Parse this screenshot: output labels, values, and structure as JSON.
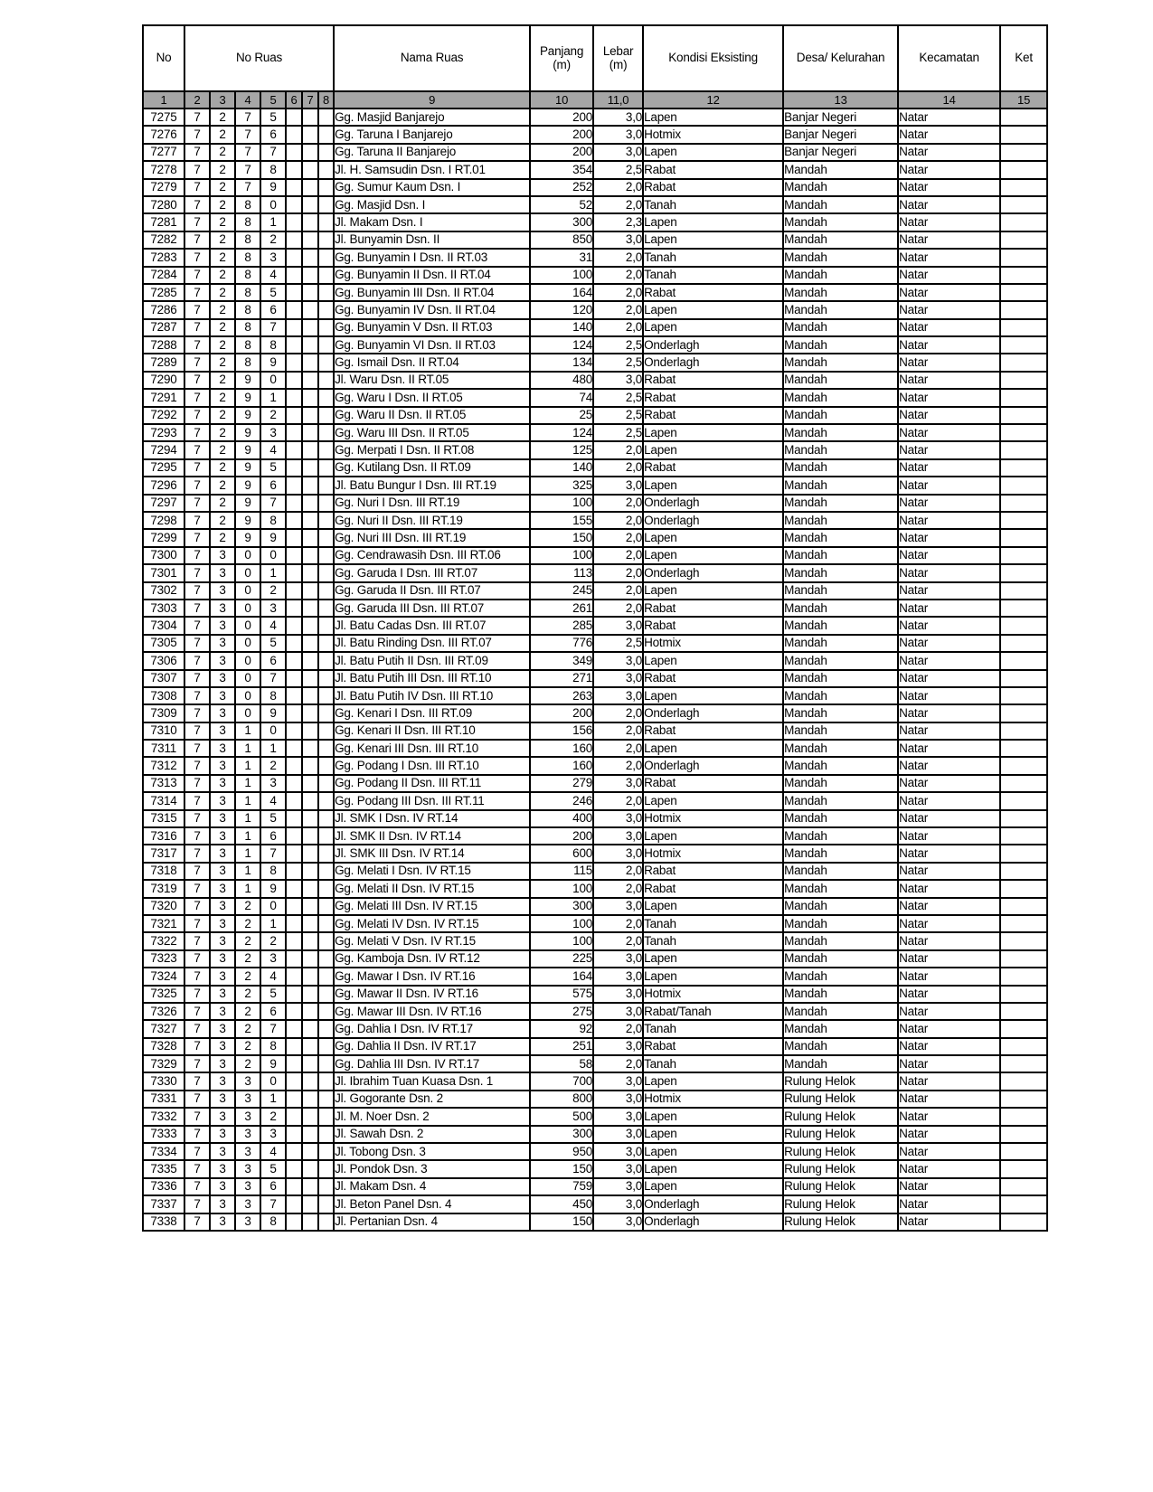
{
  "colors": {
    "header_band": "#a6a6a6",
    "border": "#000000",
    "page_background": "#ffffff"
  },
  "table": {
    "header": {
      "no": "No",
      "no_ruas": "No Ruas",
      "nama_ruas": "Nama Ruas",
      "panjang": "Panjang (m)",
      "lebar": "Lebar (m)",
      "kondisi": "Kondisi Eksisting",
      "desa": "Desa/ Kelurahan",
      "kecamatan": "Kecamatan",
      "ket": "Ket",
      "col_numbers": [
        "1",
        "2",
        "3",
        "4",
        "5",
        "6",
        "7",
        "8",
        "9",
        "10",
        "11,0",
        "12",
        "13",
        "14",
        "15"
      ]
    },
    "rows": [
      [
        "7275",
        "7",
        "2",
        "7",
        "5",
        "Gg. Masjid  Banjarejo",
        "200",
        "3,0",
        "Lapen",
        "Banjar Negeri",
        "Natar"
      ],
      [
        "7276",
        "7",
        "2",
        "7",
        "6",
        "Gg. Taruna I  Banjarejo",
        "200",
        "3,0",
        "Hotmix",
        "Banjar Negeri",
        "Natar"
      ],
      [
        "7277",
        "7",
        "2",
        "7",
        "7",
        "Gg. Taruna II  Banjarejo",
        "200",
        "3,0",
        "Lapen",
        "Banjar Negeri",
        "Natar"
      ],
      [
        "7278",
        "7",
        "2",
        "7",
        "8",
        "Jl. H. Samsudin  Dsn. I RT.01",
        "354",
        "2,5",
        "Rabat",
        "Mandah",
        "Natar"
      ],
      [
        "7279",
        "7",
        "2",
        "7",
        "9",
        "Gg. Sumur Kaum  Dsn. I",
        "252",
        "2,0",
        "Rabat",
        "Mandah",
        "Natar"
      ],
      [
        "7280",
        "7",
        "2",
        "8",
        "0",
        "Gg. Masjid  Dsn. I",
        "52",
        "2,0",
        "Tanah",
        "Mandah",
        "Natar"
      ],
      [
        "7281",
        "7",
        "2",
        "8",
        "1",
        "Jl. Makam  Dsn. I",
        "300",
        "2,3",
        "Lapen",
        "Mandah",
        "Natar"
      ],
      [
        "7282",
        "7",
        "2",
        "8",
        "2",
        "Jl. Bunyamin  Dsn. II",
        "850",
        "3,0",
        "Lapen",
        "Mandah",
        "Natar"
      ],
      [
        "7283",
        "7",
        "2",
        "8",
        "3",
        "Gg. Bunyamin I  Dsn. II RT.03",
        "31",
        "2,0",
        "Tanah",
        "Mandah",
        "Natar"
      ],
      [
        "7284",
        "7",
        "2",
        "8",
        "4",
        "Gg. Bunyamin II  Dsn. II RT.04",
        "100",
        "2,0",
        "Tanah",
        "Mandah",
        "Natar"
      ],
      [
        "7285",
        "7",
        "2",
        "8",
        "5",
        "Gg. Bunyamin III  Dsn. II RT.04",
        "164",
        "2,0",
        "Rabat",
        "Mandah",
        "Natar"
      ],
      [
        "7286",
        "7",
        "2",
        "8",
        "6",
        "Gg. Bunyamin IV  Dsn. II RT.04",
        "120",
        "2,0",
        "Lapen",
        "Mandah",
        "Natar"
      ],
      [
        "7287",
        "7",
        "2",
        "8",
        "7",
        "Gg. Bunyamin V  Dsn. II RT.03",
        "140",
        "2,0",
        "Lapen",
        "Mandah",
        "Natar"
      ],
      [
        "7288",
        "7",
        "2",
        "8",
        "8",
        "Gg. Bunyamin VI  Dsn. II RT.03",
        "124",
        "2,5",
        "Onderlagh",
        "Mandah",
        "Natar"
      ],
      [
        "7289",
        "7",
        "2",
        "8",
        "9",
        "Gg. Ismail  Dsn. II RT.04",
        "134",
        "2,5",
        "Onderlagh",
        "Mandah",
        "Natar"
      ],
      [
        "7290",
        "7",
        "2",
        "9",
        "0",
        "Jl. Waru  Dsn. II RT.05",
        "480",
        "3,0",
        "Rabat",
        "Mandah",
        "Natar"
      ],
      [
        "7291",
        "7",
        "2",
        "9",
        "1",
        "Gg. Waru I  Dsn. II RT.05",
        "74",
        "2,5",
        "Rabat",
        "Mandah",
        "Natar"
      ],
      [
        "7292",
        "7",
        "2",
        "9",
        "2",
        "Gg. Waru II  Dsn. II RT.05",
        "25",
        "2,5",
        "Rabat",
        "Mandah",
        "Natar"
      ],
      [
        "7293",
        "7",
        "2",
        "9",
        "3",
        "Gg. Waru III  Dsn. II RT.05",
        "124",
        "2,5",
        "Lapen",
        "Mandah",
        "Natar"
      ],
      [
        "7294",
        "7",
        "2",
        "9",
        "4",
        "Gg. Merpati I  Dsn. II RT.08",
        "125",
        "2,0",
        "Lapen",
        "Mandah",
        "Natar"
      ],
      [
        "7295",
        "7",
        "2",
        "9",
        "5",
        "Gg. Kutilang  Dsn. II RT.09",
        "140",
        "2,0",
        "Rabat",
        "Mandah",
        "Natar"
      ],
      [
        "7296",
        "7",
        "2",
        "9",
        "6",
        "Jl. Batu Bungur I  Dsn. III RT.19",
        "325",
        "3,0",
        "Lapen",
        "Mandah",
        "Natar"
      ],
      [
        "7297",
        "7",
        "2",
        "9",
        "7",
        "Gg. Nuri I  Dsn. III RT.19",
        "100",
        "2,0",
        "Onderlagh",
        "Mandah",
        "Natar"
      ],
      [
        "7298",
        "7",
        "2",
        "9",
        "8",
        "Gg. Nuri II  Dsn. III RT.19",
        "155",
        "2,0",
        "Onderlagh",
        "Mandah",
        "Natar"
      ],
      [
        "7299",
        "7",
        "2",
        "9",
        "9",
        "Gg. Nuri III  Dsn. III RT.19",
        "150",
        "2,0",
        "Lapen",
        "Mandah",
        "Natar"
      ],
      [
        "7300",
        "7",
        "3",
        "0",
        "0",
        "Gg. Cendrawasih  Dsn. III RT.06",
        "100",
        "2,0",
        "Lapen",
        "Mandah",
        "Natar"
      ],
      [
        "7301",
        "7",
        "3",
        "0",
        "1",
        "Gg. Garuda I  Dsn. III RT.07",
        "113",
        "2,0",
        "Onderlagh",
        "Mandah",
        "Natar"
      ],
      [
        "7302",
        "7",
        "3",
        "0",
        "2",
        "Gg. Garuda II  Dsn. III RT.07",
        "245",
        "2,0",
        "Lapen",
        "Mandah",
        "Natar"
      ],
      [
        "7303",
        "7",
        "3",
        "0",
        "3",
        "Gg. Garuda III  Dsn. III RT.07",
        "261",
        "2,0",
        "Rabat",
        "Mandah",
        "Natar"
      ],
      [
        "7304",
        "7",
        "3",
        "0",
        "4",
        "Jl. Batu Cadas  Dsn. III RT.07",
        "285",
        "3,0",
        "Rabat",
        "Mandah",
        "Natar"
      ],
      [
        "7305",
        "7",
        "3",
        "0",
        "5",
        "Jl. Batu Rinding  Dsn. III RT.07",
        "776",
        "2,5",
        "Hotmix",
        "Mandah",
        "Natar"
      ],
      [
        "7306",
        "7",
        "3",
        "0",
        "6",
        "Jl. Batu Putih II  Dsn. III RT.09",
        "349",
        "3,0",
        "Lapen",
        "Mandah",
        "Natar"
      ],
      [
        "7307",
        "7",
        "3",
        "0",
        "7",
        "Jl. Batu Putih III  Dsn. III RT.10",
        "271",
        "3,0",
        "Rabat",
        "Mandah",
        "Natar"
      ],
      [
        "7308",
        "7",
        "3",
        "0",
        "8",
        "Jl. Batu Putih IV  Dsn. III RT.10",
        "263",
        "3,0",
        "Lapen",
        "Mandah",
        "Natar"
      ],
      [
        "7309",
        "7",
        "3",
        "0",
        "9",
        "Gg. Kenari I  Dsn. III RT.09",
        "200",
        "2,0",
        "Onderlagh",
        "Mandah",
        "Natar"
      ],
      [
        "7310",
        "7",
        "3",
        "1",
        "0",
        "Gg. Kenari II  Dsn. III RT.10",
        "156",
        "2,0",
        "Rabat",
        "Mandah",
        "Natar"
      ],
      [
        "7311",
        "7",
        "3",
        "1",
        "1",
        "Gg. Kenari III  Dsn. III RT.10",
        "160",
        "2,0",
        "Lapen",
        "Mandah",
        "Natar"
      ],
      [
        "7312",
        "7",
        "3",
        "1",
        "2",
        "Gg. Podang I  Dsn. III RT.10",
        "160",
        "2,0",
        "Onderlagh",
        "Mandah",
        "Natar"
      ],
      [
        "7313",
        "7",
        "3",
        "1",
        "3",
        "Gg. Podang II  Dsn. III RT.11",
        "279",
        "3,0",
        "Rabat",
        "Mandah",
        "Natar"
      ],
      [
        "7314",
        "7",
        "3",
        "1",
        "4",
        "Gg. Podang III  Dsn. III RT.11",
        "246",
        "2,0",
        "Lapen",
        "Mandah",
        "Natar"
      ],
      [
        "7315",
        "7",
        "3",
        "1",
        "5",
        "Jl. SMK I  Dsn. IV RT.14",
        "400",
        "3,0",
        "Hotmix",
        "Mandah",
        "Natar"
      ],
      [
        "7316",
        "7",
        "3",
        "1",
        "6",
        "Jl. SMK II  Dsn. IV RT.14",
        "200",
        "3,0",
        "Lapen",
        "Mandah",
        "Natar"
      ],
      [
        "7317",
        "7",
        "3",
        "1",
        "7",
        "Jl. SMK III  Dsn. IV RT.14",
        "600",
        "3,0",
        "Hotmix",
        "Mandah",
        "Natar"
      ],
      [
        "7318",
        "7",
        "3",
        "1",
        "8",
        "Gg. Melati I  Dsn. IV RT.15",
        "115",
        "2,0",
        "Rabat",
        "Mandah",
        "Natar"
      ],
      [
        "7319",
        "7",
        "3",
        "1",
        "9",
        "Gg. Melati II  Dsn. IV RT.15",
        "100",
        "2,0",
        "Rabat",
        "Mandah",
        "Natar"
      ],
      [
        "7320",
        "7",
        "3",
        "2",
        "0",
        "Gg. Melati III  Dsn. IV RT.15",
        "300",
        "3,0",
        "Lapen",
        "Mandah",
        "Natar"
      ],
      [
        "7321",
        "7",
        "3",
        "2",
        "1",
        "Gg. Melati IV  Dsn. IV RT.15",
        "100",
        "2,0",
        "Tanah",
        "Mandah",
        "Natar"
      ],
      [
        "7322",
        "7",
        "3",
        "2",
        "2",
        "Gg. Melati V  Dsn. IV RT.15",
        "100",
        "2,0",
        "Tanah",
        "Mandah",
        "Natar"
      ],
      [
        "7323",
        "7",
        "3",
        "2",
        "3",
        "Gg. Kamboja  Dsn. IV RT.12",
        "225",
        "3,0",
        "Lapen",
        "Mandah",
        "Natar"
      ],
      [
        "7324",
        "7",
        "3",
        "2",
        "4",
        "Gg. Mawar I  Dsn. IV RT.16",
        "164",
        "3,0",
        "Lapen",
        "Mandah",
        "Natar"
      ],
      [
        "7325",
        "7",
        "3",
        "2",
        "5",
        "Gg. Mawar II  Dsn. IV RT.16",
        "575",
        "3,0",
        "Hotmix",
        "Mandah",
        "Natar"
      ],
      [
        "7326",
        "7",
        "3",
        "2",
        "6",
        "Gg. Mawar III  Dsn. IV RT.16",
        "275",
        "3,0",
        "Rabat/Tanah",
        "Mandah",
        "Natar"
      ],
      [
        "7327",
        "7",
        "3",
        "2",
        "7",
        "Gg. Dahlia I  Dsn. IV RT.17",
        "92",
        "2,0",
        "Tanah",
        "Mandah",
        "Natar"
      ],
      [
        "7328",
        "7",
        "3",
        "2",
        "8",
        "Gg. Dahlia II  Dsn. IV RT.17",
        "251",
        "3,0",
        "Rabat",
        "Mandah",
        "Natar"
      ],
      [
        "7329",
        "7",
        "3",
        "2",
        "9",
        "Gg. Dahlia III  Dsn. IV RT.17",
        "58",
        "2,0",
        "Tanah",
        "Mandah",
        "Natar"
      ],
      [
        "7330",
        "7",
        "3",
        "3",
        "0",
        "Jl. Ibrahim Tuan Kuasa  Dsn. 1",
        "700",
        "3,0",
        "Lapen",
        "Rulung Helok",
        "Natar"
      ],
      [
        "7331",
        "7",
        "3",
        "3",
        "1",
        "Jl. Gogorante  Dsn. 2",
        "800",
        "3,0",
        "Hotmix",
        "Rulung Helok",
        "Natar"
      ],
      [
        "7332",
        "7",
        "3",
        "3",
        "2",
        "Jl. M. Noer  Dsn. 2",
        "500",
        "3,0",
        "Lapen",
        "Rulung Helok",
        "Natar"
      ],
      [
        "7333",
        "7",
        "3",
        "3",
        "3",
        "Jl. Sawah  Dsn. 2",
        "300",
        "3,0",
        "Lapen",
        "Rulung Helok",
        "Natar"
      ],
      [
        "7334",
        "7",
        "3",
        "3",
        "4",
        "Jl. Tobong  Dsn. 3",
        "950",
        "3,0",
        "Lapen",
        "Rulung Helok",
        "Natar"
      ],
      [
        "7335",
        "7",
        "3",
        "3",
        "5",
        "Jl. Pondok  Dsn. 3",
        "150",
        "3,0",
        "Lapen",
        "Rulung Helok",
        "Natar"
      ],
      [
        "7336",
        "7",
        "3",
        "3",
        "6",
        "Jl. Makam  Dsn. 4",
        "759",
        "3,0",
        "Lapen",
        "Rulung Helok",
        "Natar"
      ],
      [
        "7337",
        "7",
        "3",
        "3",
        "7",
        "Jl. Beton Panel  Dsn. 4",
        "450",
        "3,0",
        "Onderlagh",
        "Rulung Helok",
        "Natar"
      ],
      [
        "7338",
        "7",
        "3",
        "3",
        "8",
        "Jl. Pertanian  Dsn. 4",
        "150",
        "3,0",
        "Onderlagh",
        "Rulung Helok",
        "Natar"
      ]
    ]
  }
}
